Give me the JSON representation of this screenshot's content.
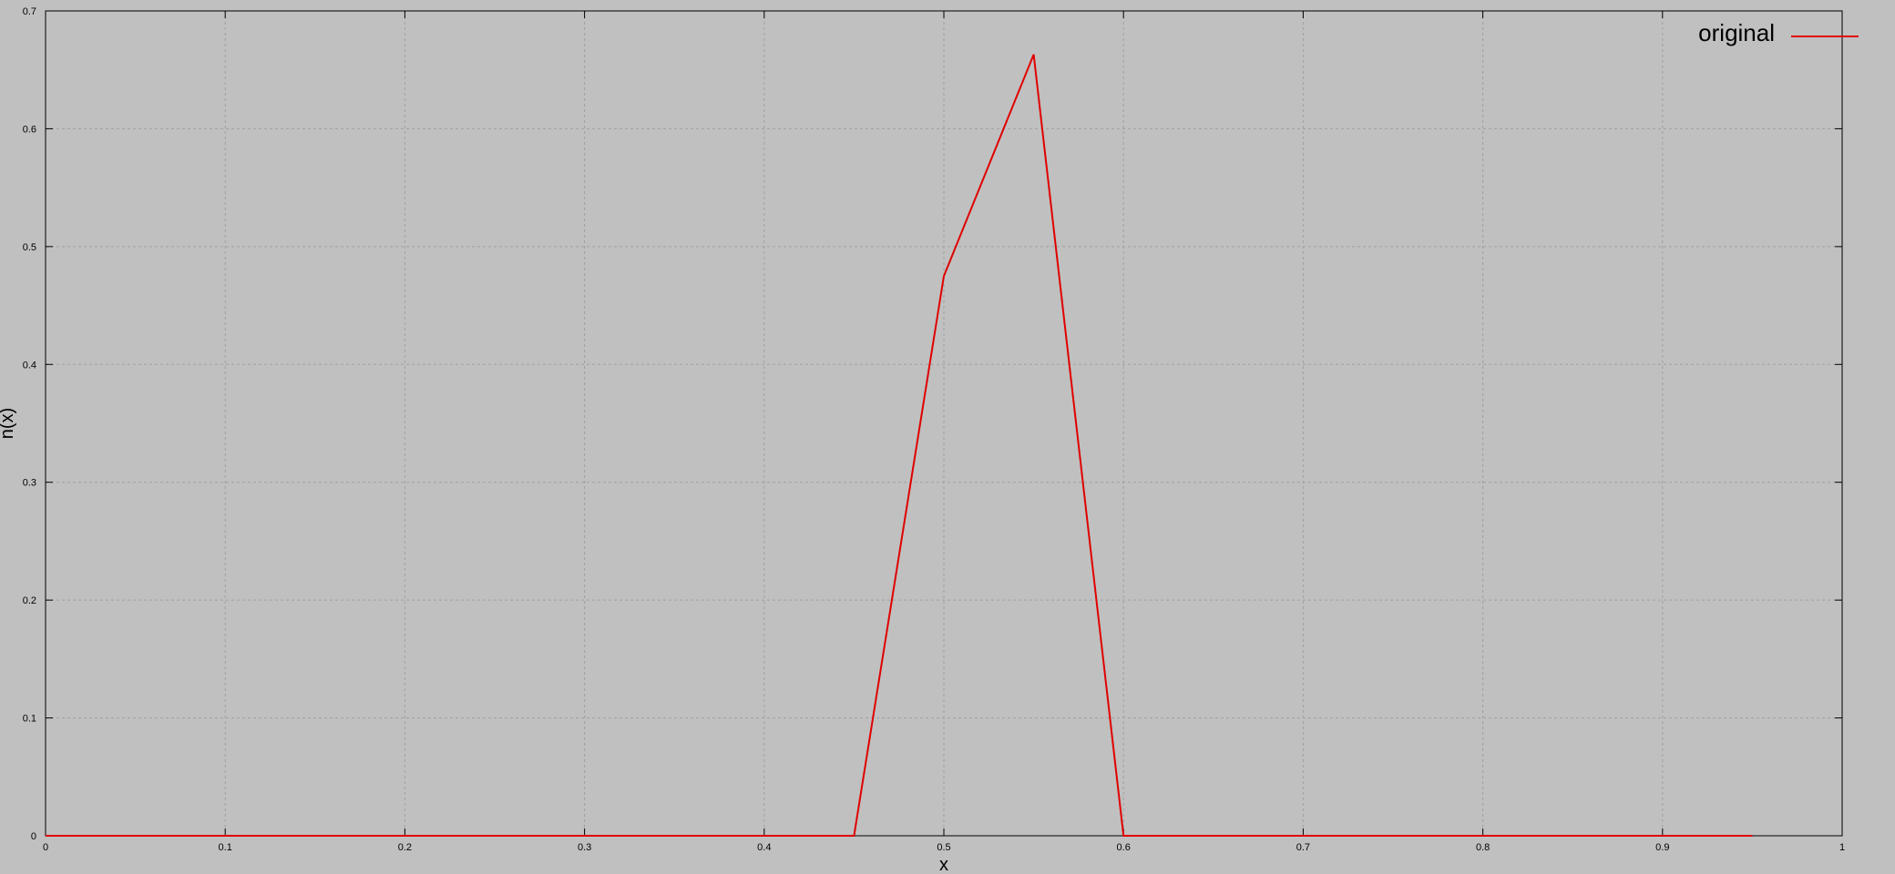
{
  "chart_data": {
    "type": "line",
    "xlabel": "x",
    "ylabel": "n(x)",
    "xlim": [
      0,
      1
    ],
    "ylim": [
      0,
      0.7
    ],
    "xticks": [
      0,
      0.1,
      0.2,
      0.3,
      0.4,
      0.5,
      0.6,
      0.7,
      0.8,
      0.9,
      1
    ],
    "xtick_labels": [
      "0",
      "0.1",
      "0.2",
      "0.3",
      "0.4",
      "0.5",
      "0.6",
      "0.7",
      "0.8",
      "0.9",
      "1"
    ],
    "yticks": [
      0,
      0.1,
      0.2,
      0.3,
      0.4,
      0.5,
      0.6,
      0.7
    ],
    "ytick_labels": [
      "0",
      "0.1",
      "0.2",
      "0.3",
      "0.4",
      "0.5",
      "0.6",
      "0.7"
    ],
    "grid": true,
    "legend_position": "top-right",
    "series": [
      {
        "name": "original",
        "color": "#e00000",
        "x": [
          0,
          0.05,
          0.1,
          0.15,
          0.2,
          0.25,
          0.3,
          0.35,
          0.4,
          0.45,
          0.5,
          0.55,
          0.6,
          0.65,
          0.7,
          0.75,
          0.8,
          0.85,
          0.9,
          0.95
        ],
        "y": [
          0,
          0,
          0,
          0,
          0,
          0,
          0,
          0,
          0,
          0,
          0.475,
          0.663,
          0,
          0,
          0,
          0,
          0,
          0,
          0,
          0
        ]
      }
    ]
  },
  "colors": {
    "background": "#c0c0c0",
    "grid": "#a0a0a0",
    "axis": "#000000"
  }
}
